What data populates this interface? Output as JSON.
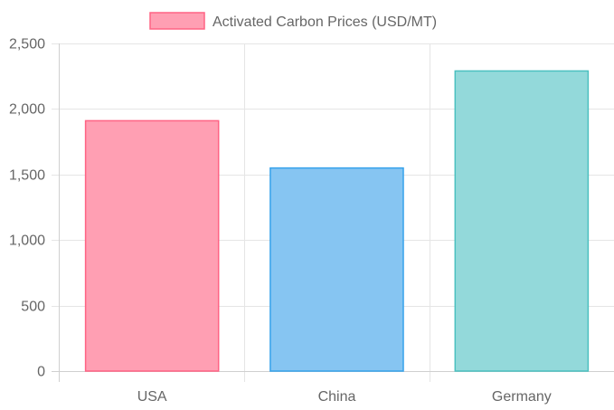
{
  "chart_data": {
    "type": "bar",
    "categories": [
      "USA",
      "China",
      "Germany"
    ],
    "series": [
      {
        "name": "Activated Carbon Prices (USD/MT)",
        "values": [
          1910,
          1550,
          2290
        ]
      }
    ],
    "bar_colors": {
      "fill": [
        "#ff9fb3",
        "#86c5f2",
        "#93d9da"
      ],
      "stroke": [
        "#ff6384",
        "#36a2eb",
        "#4bc0c0"
      ]
    },
    "legend_swatch": {
      "fill": "#ff9fb3",
      "stroke": "#ff6384"
    },
    "ylim": [
      0,
      2500
    ],
    "y_ticks": [
      0,
      500,
      1000,
      1500,
      2000,
      2500
    ],
    "y_tick_labels": [
      "0",
      "500",
      "1,000",
      "1,500",
      "2,000",
      "2,500"
    ],
    "grid": true,
    "legend_position": "top-center",
    "title": "",
    "xlabel": "",
    "ylabel": ""
  }
}
